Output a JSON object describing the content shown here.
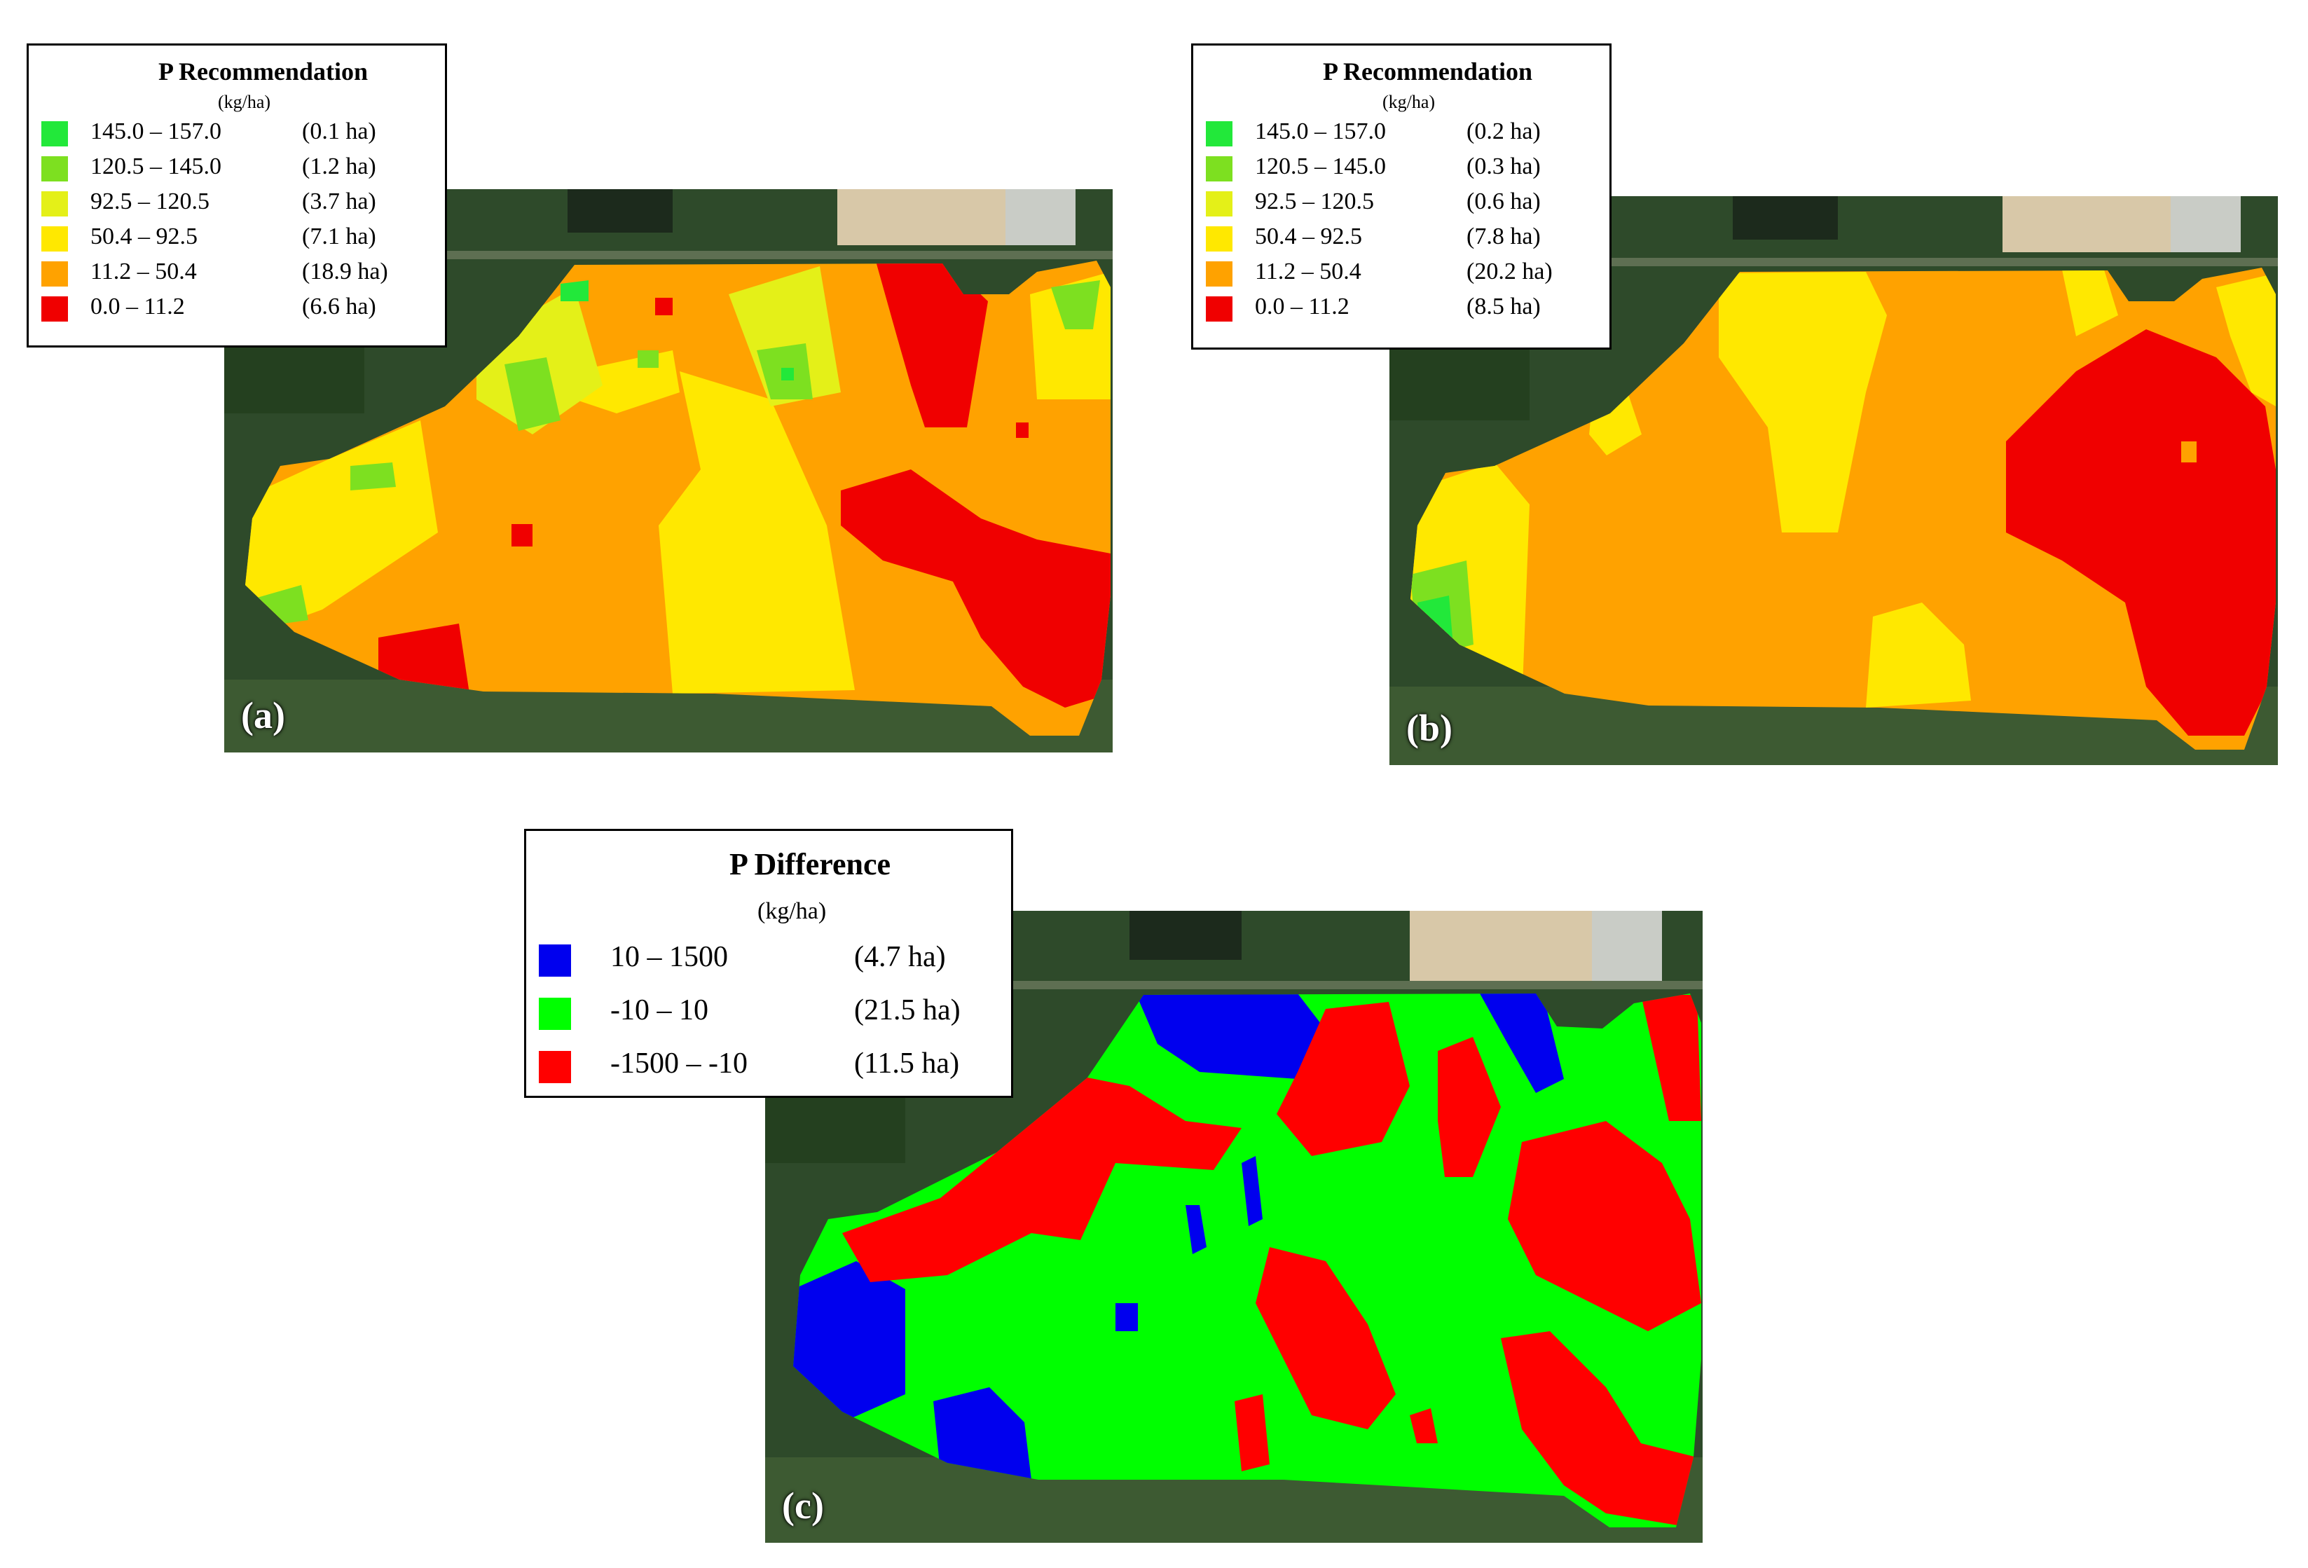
{
  "colors": {
    "class_145_157": "#22e83a",
    "class_120_145": "#7de020",
    "class_92_120": "#e4f018",
    "class_50_92": "#ffe800",
    "class_11_50": "#ffa200",
    "class_0_11": "#f00000",
    "diff_pos": "#0000ee",
    "diff_zero": "#00ff00",
    "diff_neg": "#ff0000",
    "satellite_forest": "#2e4a2a",
    "satellite_bare": "#d8c8a8"
  },
  "panels": [
    {
      "id": "a",
      "label": "(a)",
      "legend": {
        "title": "P Recommendation",
        "unit": "(kg/ha)",
        "items": [
          {
            "range": "145.0 – 157.0",
            "area": "(0.1 ha)",
            "color": "#22e83a"
          },
          {
            "range": "120.5 – 145.0",
            "area": "(1.2 ha)",
            "color": "#7de020"
          },
          {
            "range": "92.5 – 120.5",
            "area": "(3.7 ha)",
            "color": "#e4f018"
          },
          {
            "range": "50.4 – 92.5",
            "area": "(7.1 ha)",
            "color": "#ffe800"
          },
          {
            "range": "11.2 – 50.4",
            "area": "(18.9 ha)",
            "color": "#ffa200"
          },
          {
            "range": "0.0 – 11.2",
            "area": "(6.6 ha)",
            "color": "#f00000"
          }
        ]
      }
    },
    {
      "id": "b",
      "label": "(b)",
      "legend": {
        "title": "P Recommendation",
        "unit": "(kg/ha)",
        "items": [
          {
            "range": "145.0 – 157.0",
            "area": "(0.2 ha)",
            "color": "#22e83a"
          },
          {
            "range": "120.5 – 145.0",
            "area": "(0.3 ha)",
            "color": "#7de020"
          },
          {
            "range": "92.5 – 120.5",
            "area": "(0.6 ha)",
            "color": "#e4f018"
          },
          {
            "range": "50.4 – 92.5",
            "area": "(7.8 ha)",
            "color": "#ffe800"
          },
          {
            "range": "11.2 – 50.4",
            "area": "(20.2 ha)",
            "color": "#ffa200"
          },
          {
            "range": "0.0 – 11.2",
            "area": "(8.5 ha)",
            "color": "#f00000"
          }
        ]
      }
    },
    {
      "id": "c",
      "label": "(c)",
      "legend": {
        "title": "P Difference",
        "unit": "(kg/ha)",
        "items": [
          {
            "range": "10 – 1500",
            "area": "(4.7 ha)",
            "color": "#0000ee"
          },
          {
            "range": "-10 – 10",
            "area": "(21.5 ha)",
            "color": "#00ff00"
          },
          {
            "range": "-1500 – -10",
            "area": "(11.5 ha)",
            "color": "#ff0000"
          }
        ]
      }
    }
  ]
}
